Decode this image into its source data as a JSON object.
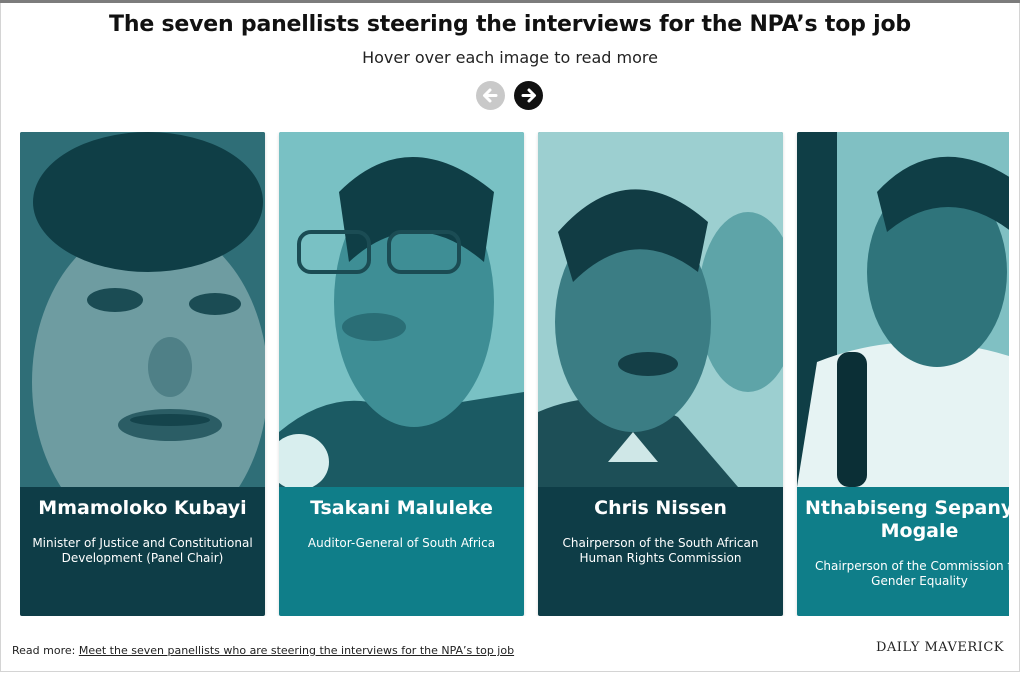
{
  "header": {
    "title": "The seven panellists steering the interviews for the NPA’s top job",
    "subtitle": "Hover over each image to read more"
  },
  "nav": {
    "prev_icon": "arrow-left-icon",
    "next_icon": "arrow-right-icon"
  },
  "cards": [
    {
      "name": "Mmamoloko Kubayi",
      "role": "Minister of Justice and Constitutional Development (Panel Chair)"
    },
    {
      "name": "Tsakani Maluleke",
      "role": "Auditor-General of South Africa"
    },
    {
      "name": "Chris Nissen",
      "role": "Chairperson of the South African Human Rights Commission"
    },
    {
      "name": "Nthabiseng Sepanya-Mogale",
      "role": "Chairperson of the Commission for Gender Equality"
    }
  ],
  "footer": {
    "readmore_prefix": "Read more:",
    "readmore_link": "Meet the seven panellists who are steering the interviews for the NPA’s top job",
    "logo_text": "DAILY MAVERICK"
  },
  "colors": {
    "dark_teal": "#0e3d47",
    "light_teal": "#0f7e89"
  }
}
